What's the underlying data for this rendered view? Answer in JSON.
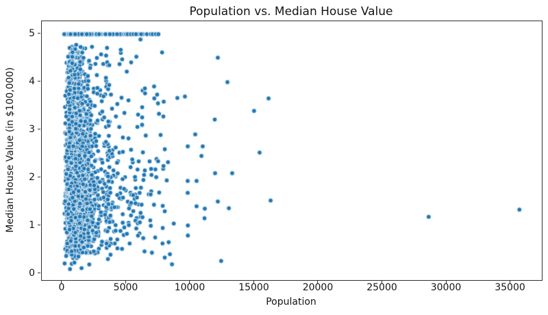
{
  "chart_data": {
    "type": "scatter",
    "title": "Population vs. Median House Value",
    "xlabel": "Population",
    "ylabel": "Median House Value (in $100,000)",
    "xlim": [
      -1604,
      37433
    ],
    "ylim": [
      -0.129,
      5.271
    ],
    "x_ticks": [
      0,
      5000,
      10000,
      15000,
      20000,
      25000,
      30000,
      35000
    ],
    "y_ticks": [
      0,
      1,
      2,
      3,
      4,
      5
    ],
    "grid": false,
    "marker": {
      "color": "#1f77b4",
      "edge_color": "rgba(255,255,255,0.85)",
      "radius_px": 3.4
    },
    "axis_color": "#303030",
    "text_color": "#141414",
    "value_cap": 5.0,
    "value_floor": 0.14,
    "cluster": {
      "seed": 42,
      "count": 2600,
      "pop_lognormal_mu": 7.0,
      "pop_lognormal_sigma": 0.6,
      "tail_fraction": 0.06,
      "tail_min": 3400,
      "tail_span": 4600,
      "tail_power": 1.6,
      "pop_min": 15,
      "pop_max": 8900,
      "value_lognormal_mu": 0.67,
      "value_lognormal_sigma": 0.68,
      "cap_snap_threshold": 4.8
    },
    "outlier_points": [
      [
        5100,
        5.0
      ],
      [
        5350,
        5.0
      ],
      [
        5550,
        5.0
      ],
      [
        5750,
        5.0
      ],
      [
        6150,
        5.0
      ],
      [
        6600,
        5.0
      ],
      [
        6900,
        5.0
      ],
      [
        7050,
        5.0
      ],
      [
        7300,
        5.0
      ],
      [
        7500,
        5.0
      ],
      [
        6100,
        4.89
      ],
      [
        5780,
        4.53
      ],
      [
        7165,
        3.91
      ],
      [
        7400,
        3.74
      ],
      [
        8980,
        3.67
      ],
      [
        9570,
        3.7
      ],
      [
        12140,
        4.51
      ],
      [
        12890,
        4.0
      ],
      [
        16100,
        3.66
      ],
      [
        14970,
        3.4
      ],
      [
        11900,
        3.22
      ],
      [
        10375,
        2.91
      ],
      [
        9790,
        2.66
      ],
      [
        10960,
        2.66
      ],
      [
        10860,
        2.46
      ],
      [
        15400,
        2.53
      ],
      [
        11925,
        2.1
      ],
      [
        13260,
        2.1
      ],
      [
        9786,
        1.94
      ],
      [
        10480,
        1.94
      ],
      [
        9786,
        1.69
      ],
      [
        12140,
        1.51
      ],
      [
        16260,
        1.53
      ],
      [
        10480,
        1.41
      ],
      [
        11123,
        1.36
      ],
      [
        13000,
        1.37
      ],
      [
        11100,
        1.16
      ],
      [
        9800,
        1.01
      ],
      [
        9800,
        0.8
      ],
      [
        8300,
        0.66
      ],
      [
        8700,
        1.05
      ],
      [
        8400,
        0.41
      ],
      [
        8560,
        0.2
      ],
      [
        12400,
        0.27
      ],
      [
        7900,
        2.25
      ],
      [
        8150,
        1.95
      ],
      [
        8000,
        2.6
      ],
      [
        8247,
        2.33
      ],
      [
        600,
        0.1
      ],
      [
        1500,
        0.12
      ],
      [
        28600,
        1.19
      ],
      [
        35680,
        1.34
      ]
    ]
  }
}
